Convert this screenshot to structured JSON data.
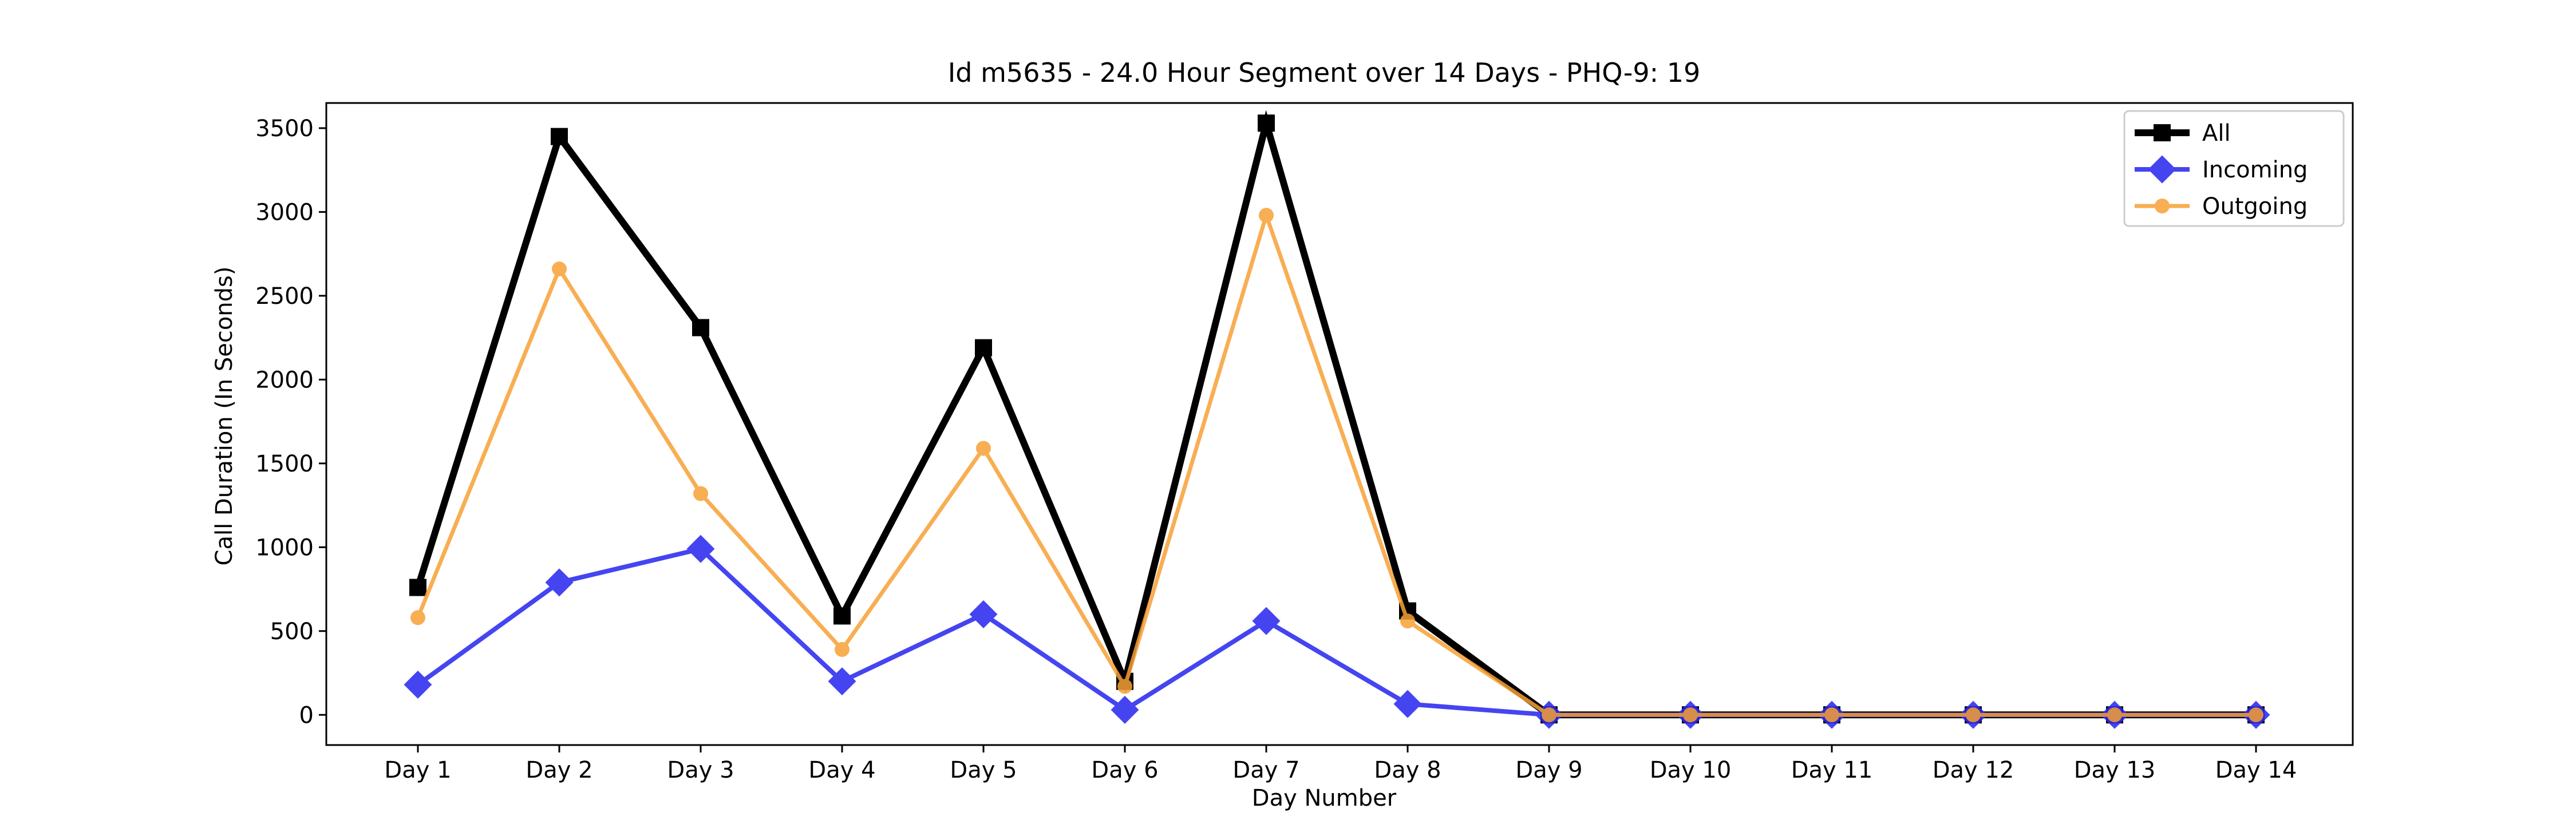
{
  "chart_data": {
    "type": "line",
    "title": "Id m5635 - 24.0 Hour Segment over 14 Days - PHQ-9: 19",
    "xlabel": "Day Number",
    "ylabel": "Call Duration (In Seconds)",
    "categories": [
      "Day 1",
      "Day 2",
      "Day 3",
      "Day 4",
      "Day 5",
      "Day 6",
      "Day 7",
      "Day 8",
      "Day 9",
      "Day 10",
      "Day 11",
      "Day 12",
      "Day 13",
      "Day 14"
    ],
    "ylim": [
      -180,
      3650
    ],
    "yticks": [
      0,
      500,
      1000,
      1500,
      2000,
      2500,
      3000,
      3500
    ],
    "grid": false,
    "legend_position": "top-right",
    "series": [
      {
        "name": "All",
        "color": "#000000",
        "marker": "square",
        "values": [
          760,
          3450,
          2310,
          590,
          2190,
          200,
          3530,
          620,
          0,
          0,
          0,
          0,
          0,
          0
        ]
      },
      {
        "name": "Incoming",
        "color": "#2b2bf0",
        "marker": "diamond",
        "values": [
          180,
          790,
          990,
          200,
          600,
          30,
          560,
          65,
          0,
          0,
          0,
          0,
          0,
          0
        ]
      },
      {
        "name": "Outgoing",
        "color": "#f7a035",
        "marker": "circle",
        "values": [
          580,
          2660,
          1320,
          390,
          1590,
          170,
          2980,
          560,
          0,
          0,
          0,
          0,
          0,
          0
        ]
      }
    ]
  }
}
